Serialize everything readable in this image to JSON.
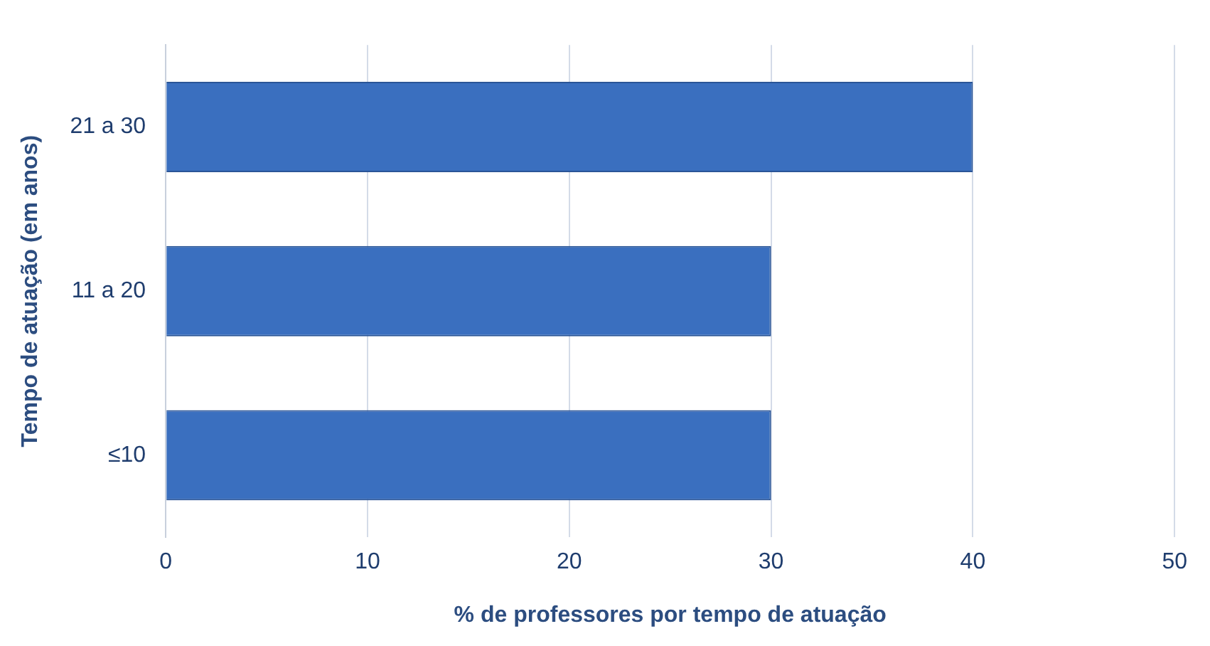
{
  "chart_data": {
    "type": "bar",
    "orientation": "horizontal",
    "xlabel": "% de professores por tempo de atuação",
    "ylabel": "Tempo de atuação (em anos)",
    "categories": [
      "21 a 30",
      "11 a 20",
      "≤10"
    ],
    "values": [
      40,
      30,
      30
    ],
    "color": "#3a6fbf",
    "xlim": [
      0,
      50
    ],
    "xticks": [
      0,
      10,
      20,
      30,
      40,
      50
    ],
    "grid": "x",
    "legend": false
  }
}
